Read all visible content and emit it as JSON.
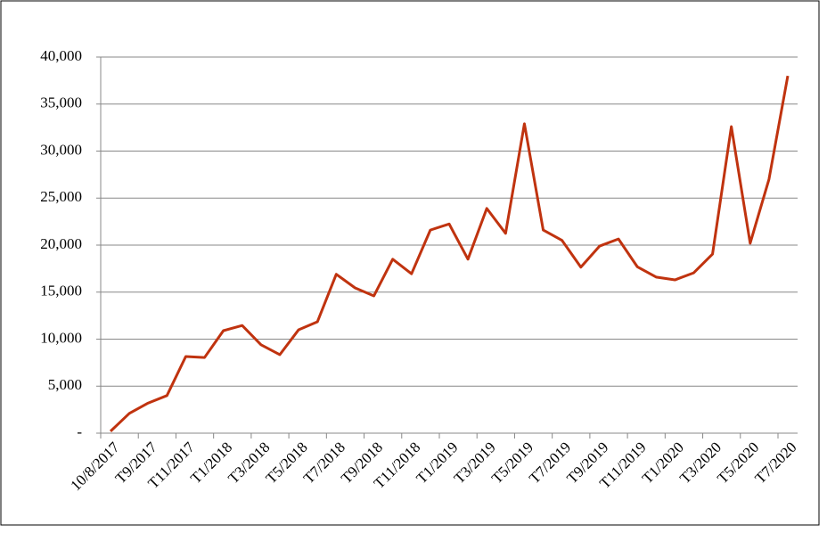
{
  "chart_data": {
    "type": "line",
    "categories": [
      "10/8/2017",
      null,
      "T9/2017",
      null,
      "T11/2017",
      null,
      "T1/2018",
      null,
      "T3/2018",
      null,
      "T5/2018",
      null,
      "T7/2018",
      null,
      "T9/2018",
      null,
      "T11/2018",
      null,
      "T1/2019",
      null,
      "T3/2019",
      null,
      "T5/2019",
      null,
      "T7/2019",
      null,
      "T9/2019",
      null,
      "T11/2019",
      null,
      "T1/2020",
      null,
      "T3/2020",
      null,
      "T5/2020",
      null,
      "T7/2020"
    ],
    "series": [
      {
        "color": "#c0330f",
        "values": [
          200,
          2100,
          3200,
          4000,
          8150,
          8050,
          10900,
          11450,
          9400,
          8350,
          11000,
          11850,
          16900,
          15450,
          14600,
          18500,
          16950,
          21600,
          22250,
          18500,
          23900,
          21250,
          32900,
          21600,
          20500,
          17650,
          19900,
          20650,
          17700,
          16600,
          16300,
          17050,
          19050,
          32600,
          20200,
          27000,
          38000
        ]
      }
    ],
    "ylim": [
      0,
      40000
    ],
    "yticks": [
      {
        "value": 0,
        "label": "-"
      },
      {
        "value": 5000,
        "label": "5,000"
      },
      {
        "value": 10000,
        "label": "10,000"
      },
      {
        "value": 15000,
        "label": "15,000"
      },
      {
        "value": 20000,
        "label": "20,000"
      },
      {
        "value": 25000,
        "label": "25,000"
      },
      {
        "value": 30000,
        "label": "30,000"
      },
      {
        "value": 35000,
        "label": "35,000"
      },
      {
        "value": 40000,
        "label": "40,000"
      }
    ],
    "grid": true
  }
}
